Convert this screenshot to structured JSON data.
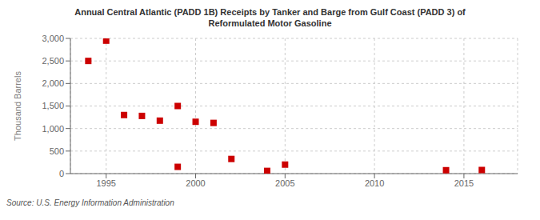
{
  "chart_data": {
    "type": "scatter",
    "title": "Annual Central Atlantic (PADD 1B) Receipts by Tanker and Barge from Gulf Coast (PADD 3) of\nReformulated Motor Gasoline",
    "ylabel": "Thousand Barrels",
    "annotation": "Source: U.S. Energy Information Administration",
    "color": "#cc0000",
    "marker": "square",
    "grid": true,
    "xlim": [
      1993,
      2018
    ],
    "ylim": [
      0,
      3000
    ],
    "xticks": [
      1995,
      2000,
      2005,
      2010,
      2015
    ],
    "yticks": [
      0,
      500,
      {
        "value": 1000,
        "label": "1,000"
      },
      {
        "value": 1500,
        "label": "1,500"
      },
      {
        "value": 2000,
        "label": "2,000"
      },
      {
        "value": 2500,
        "label": "2,500"
      },
      {
        "value": 3000,
        "label": "3,000"
      }
    ],
    "x": [
      1994,
      1995,
      1996,
      1997,
      1998,
      1999,
      1999,
      2000,
      2001,
      2002,
      2004,
      2005,
      2014,
      2016
    ],
    "y": [
      2500,
      2950,
      1300,
      1280,
      1175,
      1500,
      150,
      1150,
      1125,
      325,
      60,
      200,
      75,
      80
    ]
  }
}
